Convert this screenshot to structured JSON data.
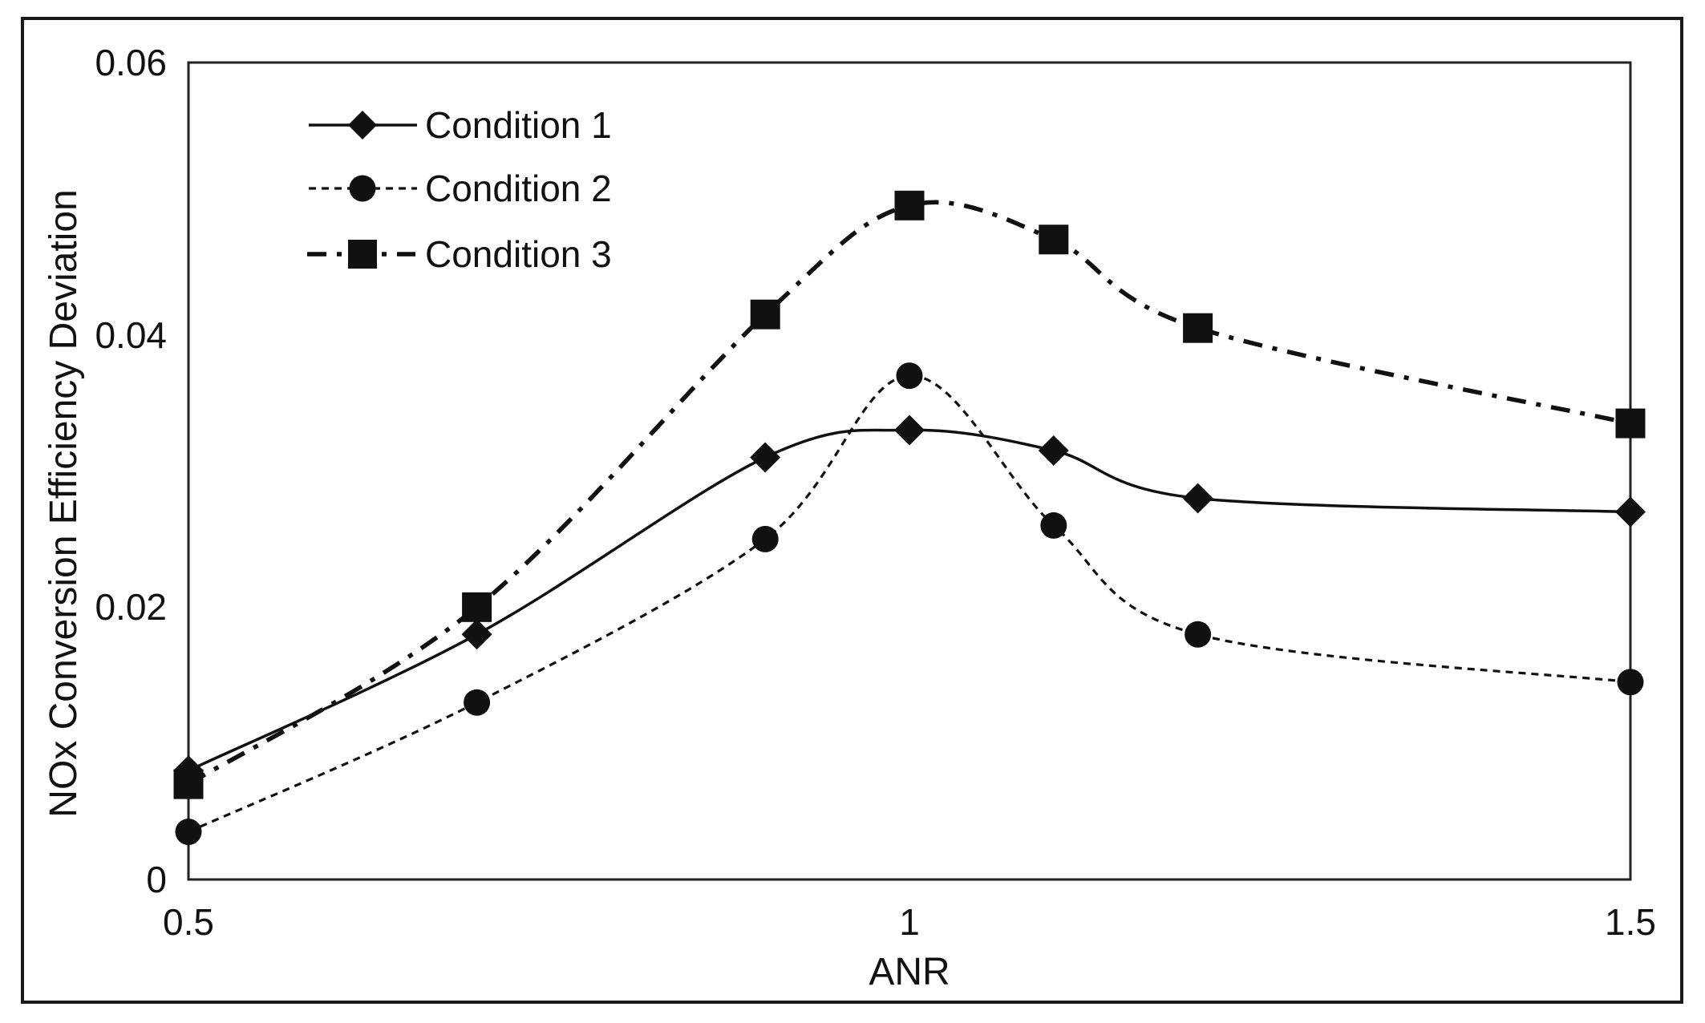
{
  "chart_data": {
    "type": "line",
    "title": "",
    "xlabel": "ANR",
    "ylabel": "NOx Conversion Efficiency Deviation",
    "xlim": [
      0.5,
      1.5
    ],
    "ylim": [
      0,
      0.06
    ],
    "xticks": [
      "0.5",
      "1",
      "1.5"
    ],
    "xtick_values": [
      0.5,
      1,
      1.5
    ],
    "yticks": [
      "0",
      "0.02",
      "0.04",
      "0.06"
    ],
    "ytick_values": [
      0,
      0.02,
      0.04,
      0.06
    ],
    "grid": false,
    "legend_position": "top-left-inside",
    "line_smoothing": true,
    "x": [
      0.5,
      0.7,
      0.9,
      1,
      1.1,
      1.2,
      1.5
    ],
    "series": [
      {
        "name": "Condition 1",
        "marker": "diamond",
        "line": "solid",
        "values": [
          0.008,
          0.018,
          0.031,
          0.033,
          0.0315,
          0.028,
          0.027
        ]
      },
      {
        "name": "Condition 2",
        "marker": "circle",
        "line": "dashed",
        "values": [
          0.0035,
          0.013,
          0.025,
          0.037,
          0.026,
          0.018,
          0.0145
        ]
      },
      {
        "name": "Condition 3",
        "marker": "square",
        "line": "dashdot",
        "values": [
          0.007,
          0.02,
          0.0415,
          0.0495,
          0.047,
          0.0405,
          0.0335
        ]
      }
    ],
    "colors": {
      "foreground": "#111111",
      "background": "#ffffff"
    }
  }
}
